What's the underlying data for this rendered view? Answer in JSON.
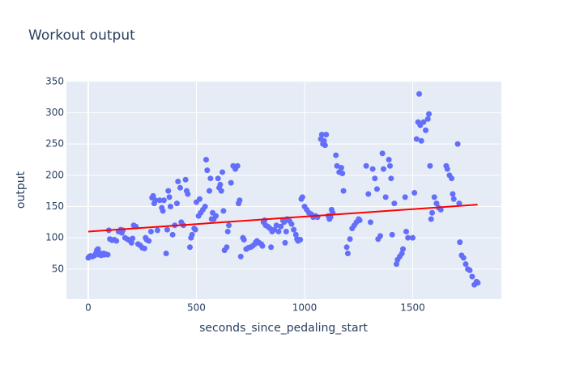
{
  "chart_data": {
    "type": "scatter",
    "title": "Workout output",
    "x_label": "seconds_since_pedaling_start",
    "y_label": "output",
    "x": [
      0,
      5,
      10,
      20,
      30,
      35,
      40,
      45,
      50,
      55,
      60,
      70,
      75,
      80,
      90,
      95,
      100,
      110,
      120,
      130,
      140,
      150,
      155,
      160,
      170,
      180,
      190,
      200,
      205,
      210,
      220,
      230,
      240,
      250,
      260,
      265,
      270,
      280,
      290,
      295,
      300,
      305,
      310,
      320,
      330,
      340,
      345,
      350,
      360,
      365,
      370,
      375,
      380,
      390,
      400,
      410,
      415,
      425,
      430,
      440,
      450,
      455,
      460,
      470,
      475,
      480,
      490,
      495,
      500,
      510,
      515,
      520,
      530,
      540,
      545,
      550,
      560,
      565,
      570,
      575,
      580,
      590,
      600,
      605,
      610,
      615,
      620,
      625,
      630,
      640,
      645,
      650,
      660,
      670,
      680,
      690,
      695,
      700,
      705,
      715,
      720,
      730,
      740,
      750,
      760,
      770,
      775,
      780,
      790,
      800,
      805,
      810,
      815,
      820,
      830,
      840,
      845,
      850,
      860,
      870,
      880,
      890,
      900,
      905,
      910,
      915,
      920,
      930,
      940,
      950,
      960,
      965,
      970,
      980,
      985,
      990,
      1000,
      1010,
      1020,
      1030,
      1040,
      1050,
      1060,
      1075,
      1080,
      1085,
      1090,
      1095,
      1100,
      1110,
      1115,
      1120,
      1125,
      1130,
      1145,
      1150,
      1160,
      1170,
      1175,
      1180,
      1195,
      1200,
      1210,
      1220,
      1230,
      1240,
      1250,
      1255,
      1285,
      1295,
      1305,
      1315,
      1325,
      1335,
      1340,
      1350,
      1360,
      1365,
      1375,
      1390,
      1395,
      1400,
      1405,
      1415,
      1425,
      1430,
      1440,
      1450,
      1455,
      1465,
      1470,
      1478,
      1500,
      1508,
      1518,
      1525,
      1530,
      1535,
      1540,
      1550,
      1560,
      1570,
      1575,
      1580,
      1585,
      1590,
      1600,
      1610,
      1620,
      1630,
      1655,
      1660,
      1670,
      1680,
      1685,
      1690,
      1708,
      1715,
      1718,
      1726,
      1735,
      1745,
      1755,
      1764,
      1775,
      1785,
      1795,
      1801
    ],
    "values": [
      68,
      70,
      71,
      70,
      72,
      75,
      80,
      82,
      73,
      75,
      72,
      75,
      73,
      74,
      73,
      112,
      98,
      96,
      97,
      95,
      110,
      113,
      108,
      112,
      100,
      98,
      96,
      92,
      99,
      120,
      118,
      90,
      88,
      84,
      83,
      100,
      97,
      95,
      110,
      164,
      167,
      155,
      160,
      112,
      160,
      148,
      143,
      160,
      75,
      113,
      175,
      165,
      150,
      105,
      120,
      155,
      190,
      180,
      125,
      120,
      193,
      175,
      170,
      85,
      100,
      105,
      115,
      113,
      157,
      135,
      162,
      140,
      145,
      150,
      225,
      208,
      175,
      195,
      130,
      140,
      130,
      135,
      195,
      180,
      185,
      175,
      205,
      143,
      80,
      85,
      110,
      120,
      188,
      215,
      210,
      215,
      155,
      160,
      70,
      100,
      97,
      82,
      84,
      85,
      87,
      90,
      93,
      95,
      92,
      90,
      87,
      125,
      128,
      120,
      118,
      115,
      85,
      110,
      113,
      120,
      110,
      118,
      128,
      125,
      92,
      110,
      130,
      127,
      122,
      113,
      105,
      98,
      95,
      97,
      162,
      165,
      150,
      145,
      140,
      138,
      133,
      135,
      133,
      258,
      265,
      250,
      255,
      248,
      265,
      135,
      130,
      133,
      145,
      140,
      232,
      215,
      205,
      212,
      203,
      175,
      85,
      75,
      98,
      115,
      120,
      125,
      130,
      128,
      215,
      170,
      125,
      210,
      195,
      178,
      98,
      103,
      235,
      210,
      165,
      225,
      215,
      195,
      105,
      155,
      58,
      65,
      70,
      75,
      82,
      165,
      110,
      100,
      100,
      172,
      258,
      285,
      330,
      280,
      255,
      285,
      272,
      290,
      298,
      215,
      130,
      140,
      165,
      155,
      148,
      145,
      215,
      210,
      200,
      195,
      170,
      162,
      250,
      155,
      93,
      72,
      68,
      58,
      50,
      48,
      38,
      25,
      30,
      28
    ],
    "color": "#636efa",
    "trendline": {
      "x": [
        0,
        1800
      ],
      "values": [
        110,
        153
      ],
      "color": "red"
    },
    "xlim": [
      -101,
      1910
    ],
    "ylim": [
      2,
      351
    ],
    "xticks": [
      0,
      500,
      1000,
      1500
    ],
    "yticks": [
      50,
      100,
      150,
      200,
      250,
      300,
      350
    ],
    "grid": true
  }
}
